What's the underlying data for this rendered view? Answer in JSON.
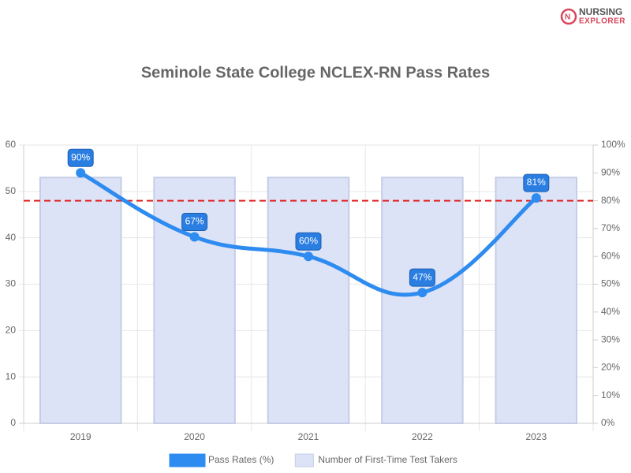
{
  "chart_data": {
    "type": "combo",
    "title": "Seminole State College NCLEX-RN Pass Rates",
    "logo": [
      "NURSING",
      "EXPLORER"
    ],
    "categories": [
      "2019",
      "2020",
      "2021",
      "2022",
      "2023"
    ],
    "series": [
      {
        "name": "Pass Rates (%)",
        "type": "line",
        "axis": "y2",
        "color": "#2e8bf0",
        "values": [
          90,
          67,
          60,
          47,
          81
        ],
        "value_labels": [
          "90%",
          "67%",
          "60%",
          "47%",
          "81%"
        ],
        "label_color": "#2a7de1"
      },
      {
        "name": "Number of First-Time Test Takers",
        "type": "bar",
        "color": "#dde3f7",
        "border_color": "#c5cde6",
        "values": [
          53,
          53,
          53,
          53,
          53
        ]
      }
    ],
    "ylim": [
      0,
      60
    ],
    "yticks": [
      0,
      10,
      20,
      30,
      40,
      50,
      60
    ],
    "y2lim": [
      0,
      100
    ],
    "y2ticks": [
      {
        "value": 0,
        "label": "0%"
      },
      {
        "value": 10,
        "label": "10%"
      },
      {
        "value": 20,
        "label": "20%"
      },
      {
        "value": 30,
        "label": "30%"
      },
      {
        "value": 40,
        "label": "40%"
      },
      {
        "value": 50,
        "label": "50%"
      },
      {
        "value": 60,
        "label": "60%"
      },
      {
        "value": 70,
        "label": "70%"
      },
      {
        "value": 80,
        "label": "80%"
      },
      {
        "value": 90,
        "label": "90%"
      },
      {
        "value": 100,
        "label": "100%"
      }
    ],
    "reference_line": {
      "value": 80,
      "axis": "y2",
      "color": "#e02020"
    },
    "grid": true,
    "legend": "bottom"
  }
}
